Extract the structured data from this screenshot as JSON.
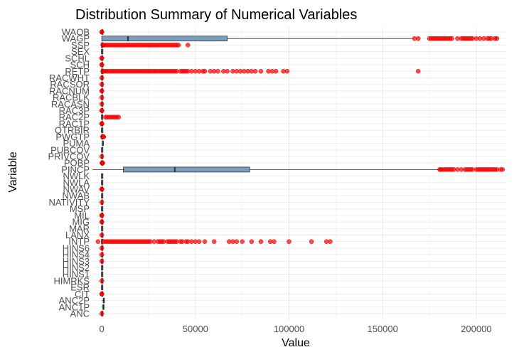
{
  "chart_data": {
    "type": "boxplot",
    "title": "Distribution Summary of Numerical Variables",
    "xlabel": "Value",
    "ylabel": "Variable",
    "xlim": [
      -5000,
      216000
    ],
    "x_ticks": [
      0,
      50000,
      100000,
      150000,
      200000
    ],
    "x_tick_labels": [
      "0",
      "50000",
      "100000",
      "150000",
      "200000"
    ],
    "grid": true,
    "box_fill": "#7b9fc3",
    "outlier_color": "#ff0000",
    "variables": [
      {
        "name": "ANC",
        "q1": 1,
        "median": 1,
        "q3": 1,
        "whisker_low": 1,
        "whisker_high": 1,
        "outliers": [
          4
        ]
      },
      {
        "name": "ANC1P",
        "q1": 600,
        "median": 800,
        "q3": 900,
        "whisker_low": 100,
        "whisker_high": 1500,
        "outliers": []
      },
      {
        "name": "ANC2P",
        "q1": 800,
        "median": 999,
        "q3": 999,
        "whisker_low": 100,
        "whisker_high": 1500,
        "outliers": []
      },
      {
        "name": "CIT",
        "q1": 1,
        "median": 1,
        "q3": 1,
        "whisker_low": 1,
        "whisker_high": 1,
        "outliers": [
          2,
          4,
          5
        ]
      },
      {
        "name": "ESR",
        "q1": 1,
        "median": 1,
        "q3": 6,
        "whisker_low": 1,
        "whisker_high": 6,
        "outliers": []
      },
      {
        "name": "HIMRKS",
        "q1": 2,
        "median": 2,
        "q3": 2,
        "whisker_low": 2,
        "whisker_high": 2,
        "outliers": [
          1
        ]
      },
      {
        "name": "HINS1",
        "q1": 1,
        "median": 1,
        "q3": 2,
        "whisker_low": 1,
        "whisker_high": 2,
        "outliers": []
      },
      {
        "name": "HINS2",
        "q1": 1,
        "median": 2,
        "q3": 2,
        "whisker_low": 1,
        "whisker_high": 2,
        "outliers": []
      },
      {
        "name": "HINS3",
        "q1": 2,
        "median": 2,
        "q3": 2,
        "whisker_low": 2,
        "whisker_high": 2,
        "outliers": [
          1
        ]
      },
      {
        "name": "HINS4",
        "q1": 2,
        "median": 2,
        "q3": 2,
        "whisker_low": 2,
        "whisker_high": 2,
        "outliers": [
          1
        ]
      },
      {
        "name": "HINS6",
        "q1": 2,
        "median": 2,
        "q3": 2,
        "whisker_low": 2,
        "whisker_high": 2,
        "outliers": [
          1
        ]
      },
      {
        "name": "INTP",
        "q1": 0,
        "median": 0,
        "q3": 0,
        "whisker_low": 0,
        "whisker_high": 0,
        "outliers": [
          -2000,
          1000,
          2000,
          3000,
          4000,
          5000,
          6000,
          7000,
          8000,
          9000,
          10000,
          11000,
          12000,
          13000,
          14000,
          15000,
          16000,
          17000,
          18000,
          19000,
          20000,
          21000,
          22000,
          23000,
          24000,
          25000,
          26000,
          28000,
          30000,
          31000,
          32000,
          33000,
          35000,
          36000,
          37000,
          38000,
          39000,
          40000,
          42000,
          43000,
          45000,
          46000,
          48000,
          50000,
          52000,
          55000,
          60000,
          68000,
          70000,
          72000,
          75000,
          80000,
          85000,
          90000,
          92000,
          100000,
          112000,
          120000,
          122000
        ]
      },
      {
        "name": "LANX",
        "q1": 1,
        "median": 1,
        "q3": 2,
        "whisker_low": 1,
        "whisker_high": 2,
        "outliers": [
          3
        ]
      },
      {
        "name": "MAR",
        "q1": 1,
        "median": 1,
        "q3": 5,
        "whisker_low": 1,
        "whisker_high": 5,
        "outliers": []
      },
      {
        "name": "MIG",
        "q1": 1,
        "median": 1,
        "q3": 1,
        "whisker_low": 1,
        "whisker_high": 1,
        "outliers": [
          2,
          3
        ]
      },
      {
        "name": "MIL",
        "q1": 4,
        "median": 4,
        "q3": 4,
        "whisker_low": 4,
        "whisker_high": 4,
        "outliers": [
          1,
          2,
          3
        ]
      },
      {
        "name": "MSP",
        "q1": 1,
        "median": 2,
        "q3": 6,
        "whisker_low": 1,
        "whisker_high": 6,
        "outliers": []
      },
      {
        "name": "NATIVITY",
        "q1": 1,
        "median": 1,
        "q3": 1,
        "whisker_low": 1,
        "whisker_high": 1,
        "outliers": [
          2
        ]
      },
      {
        "name": "NWAB",
        "q1": 2,
        "median": 3,
        "q3": 3,
        "whisker_low": 1,
        "whisker_high": 3,
        "outliers": []
      },
      {
        "name": "NWAV",
        "q1": 5,
        "median": 5,
        "q3": 5,
        "whisker_low": 5,
        "whisker_high": 5,
        "outliers": [
          1,
          2,
          3,
          4
        ]
      },
      {
        "name": "NWLA",
        "q1": 2,
        "median": 3,
        "q3": 3,
        "whisker_low": 1,
        "whisker_high": 3,
        "outliers": []
      },
      {
        "name": "NWLK",
        "q1": 2,
        "median": 2,
        "q3": 3,
        "whisker_low": 1,
        "whisker_high": 3,
        "outliers": []
      },
      {
        "name": "PINCP",
        "q1": 11500,
        "median": 39000,
        "q3": 79000,
        "whisker_low": -5000,
        "whisker_high": 180000,
        "outliers": [
          180500,
          181000,
          182000,
          183000,
          184000,
          185000,
          186000,
          187000,
          188000,
          190000,
          192000,
          194000,
          195000,
          196000,
          197000,
          198000,
          200000,
          201000,
          202000,
          203000,
          204000,
          205000,
          206000,
          207000,
          208000,
          209000,
          210000,
          211000,
          213000,
          214000
        ]
      },
      {
        "name": "POBP",
        "q1": 10,
        "median": 30,
        "q3": 50,
        "whisker_low": 1,
        "whisker_high": 60,
        "outliers": [
          100,
          200,
          300,
          400,
          500
        ]
      },
      {
        "name": "PRIVCOV",
        "q1": 1,
        "median": 1,
        "q3": 1,
        "whisker_low": 1,
        "whisker_high": 1,
        "outliers": [
          2
        ]
      },
      {
        "name": "PUBCOV",
        "q1": 1,
        "median": 2,
        "q3": 2,
        "whisker_low": 1,
        "whisker_high": 2,
        "outliers": []
      },
      {
        "name": "PUMA",
        "q1": 300,
        "median": 500,
        "q3": 700,
        "whisker_low": 100,
        "whisker_high": 1100,
        "outliers": []
      },
      {
        "name": "PWGTP",
        "q1": 60,
        "median": 100,
        "q3": 170,
        "whisker_low": 1,
        "whisker_high": 330,
        "outliers": [
          400,
          500,
          600,
          700,
          800,
          900,
          1000
        ]
      },
      {
        "name": "QTRBIR",
        "q1": 2,
        "median": 3,
        "q3": 4,
        "whisker_low": 1,
        "whisker_high": 4,
        "outliers": []
      },
      {
        "name": "RAC1P",
        "q1": 1,
        "median": 1,
        "q3": 1,
        "whisker_low": 1,
        "whisker_high": 1,
        "outliers": [
          2,
          3,
          5,
          6,
          8,
          9
        ]
      },
      {
        "name": "RAC2P",
        "q1": 1,
        "median": 1,
        "q3": 1,
        "whisker_low": 1,
        "whisker_high": 1,
        "outliers": [
          2000,
          3000,
          4000,
          5000,
          6000,
          7000,
          8000,
          9000
        ]
      },
      {
        "name": "RAC3P",
        "q1": 1,
        "median": 1,
        "q3": 1,
        "whisker_low": 1,
        "whisker_high": 1,
        "outliers": [
          2,
          3,
          4,
          5,
          10,
          20,
          50,
          100
        ]
      },
      {
        "name": "RACASN",
        "q1": 0,
        "median": 0,
        "q3": 0,
        "whisker_low": 0,
        "whisker_high": 0,
        "outliers": [
          1
        ]
      },
      {
        "name": "RACBLK",
        "q1": 0,
        "median": 0,
        "q3": 0,
        "whisker_low": 0,
        "whisker_high": 0,
        "outliers": [
          1
        ]
      },
      {
        "name": "RACNUM",
        "q1": 1,
        "median": 1,
        "q3": 1,
        "whisker_low": 1,
        "whisker_high": 1,
        "outliers": [
          2,
          3
        ]
      },
      {
        "name": "RACSOR",
        "q1": 0,
        "median": 0,
        "q3": 0,
        "whisker_low": 0,
        "whisker_high": 0,
        "outliers": [
          1
        ]
      },
      {
        "name": "RACWHT",
        "q1": 1,
        "median": 1,
        "q3": 1,
        "whisker_low": 1,
        "whisker_high": 1,
        "outliers": [
          0
        ]
      },
      {
        "name": "RETP",
        "q1": 0,
        "median": 0,
        "q3": 0,
        "whisker_low": 0,
        "whisker_high": 0,
        "outliers": [
          500,
          1000,
          2000,
          3000,
          4000,
          5000,
          6000,
          7000,
          8000,
          9000,
          10000,
          11000,
          12000,
          13000,
          14000,
          15000,
          16000,
          17000,
          18000,
          19000,
          20000,
          21000,
          22000,
          23000,
          24000,
          25000,
          26000,
          27000,
          28000,
          29000,
          30000,
          31000,
          32000,
          33000,
          34000,
          35000,
          36000,
          37000,
          38000,
          39000,
          40000,
          42000,
          43000,
          44000,
          45000,
          46000,
          48000,
          50000,
          52000,
          54000,
          55000,
          58000,
          60000,
          62000,
          65000,
          67000,
          70000,
          72000,
          74000,
          76000,
          78000,
          80000,
          82000,
          85000,
          89000,
          91000,
          93000,
          97000,
          99000,
          169000
        ]
      },
      {
        "name": "SCH",
        "q1": 1,
        "median": 1,
        "q3": 1,
        "whisker_low": 1,
        "whisker_high": 1,
        "outliers": [
          2,
          3
        ]
      },
      {
        "name": "SCHL",
        "q1": 16,
        "median": 19,
        "q3": 21,
        "whisker_low": 12,
        "whisker_high": 24,
        "outliers": [
          1,
          5,
          8
        ]
      },
      {
        "name": "SEX",
        "q1": 1,
        "median": 2,
        "q3": 2,
        "whisker_low": 1,
        "whisker_high": 2,
        "outliers": []
      },
      {
        "name": "SSP",
        "q1": 0,
        "median": 0,
        "q3": 0,
        "whisker_low": 0,
        "whisker_high": 0,
        "outliers": [
          500,
          1000,
          2000,
          3000,
          4000,
          5000,
          6000,
          7000,
          8000,
          9000,
          10000,
          11000,
          12000,
          13000,
          14000,
          15000,
          16000,
          17000,
          18000,
          19000,
          20000,
          21000,
          22000,
          23000,
          24000,
          25000,
          26000,
          27000,
          28000,
          29000,
          30000,
          31000,
          32000,
          33000,
          34000,
          35000,
          36000,
          37000,
          38000,
          39000,
          40000,
          41000,
          46000
        ]
      },
      {
        "name": "WAGP",
        "q1": 0,
        "median": 14000,
        "q3": 67000,
        "whisker_low": 0,
        "whisker_high": 166000,
        "outliers": [
          167000,
          169000,
          175000,
          176000,
          177000,
          178000,
          179000,
          180000,
          181000,
          182000,
          183000,
          184000,
          185000,
          186000,
          187000,
          190000,
          192000,
          193000,
          194000,
          195000,
          196000,
          197000,
          198000,
          200000,
          202000,
          204000,
          206000,
          207000,
          208000,
          210000,
          211000
        ]
      },
      {
        "name": "WAOB",
        "q1": 1,
        "median": 1,
        "q3": 1,
        "whisker_low": 1,
        "whisker_high": 1,
        "outliers": [
          2,
          3,
          4
        ]
      }
    ]
  }
}
